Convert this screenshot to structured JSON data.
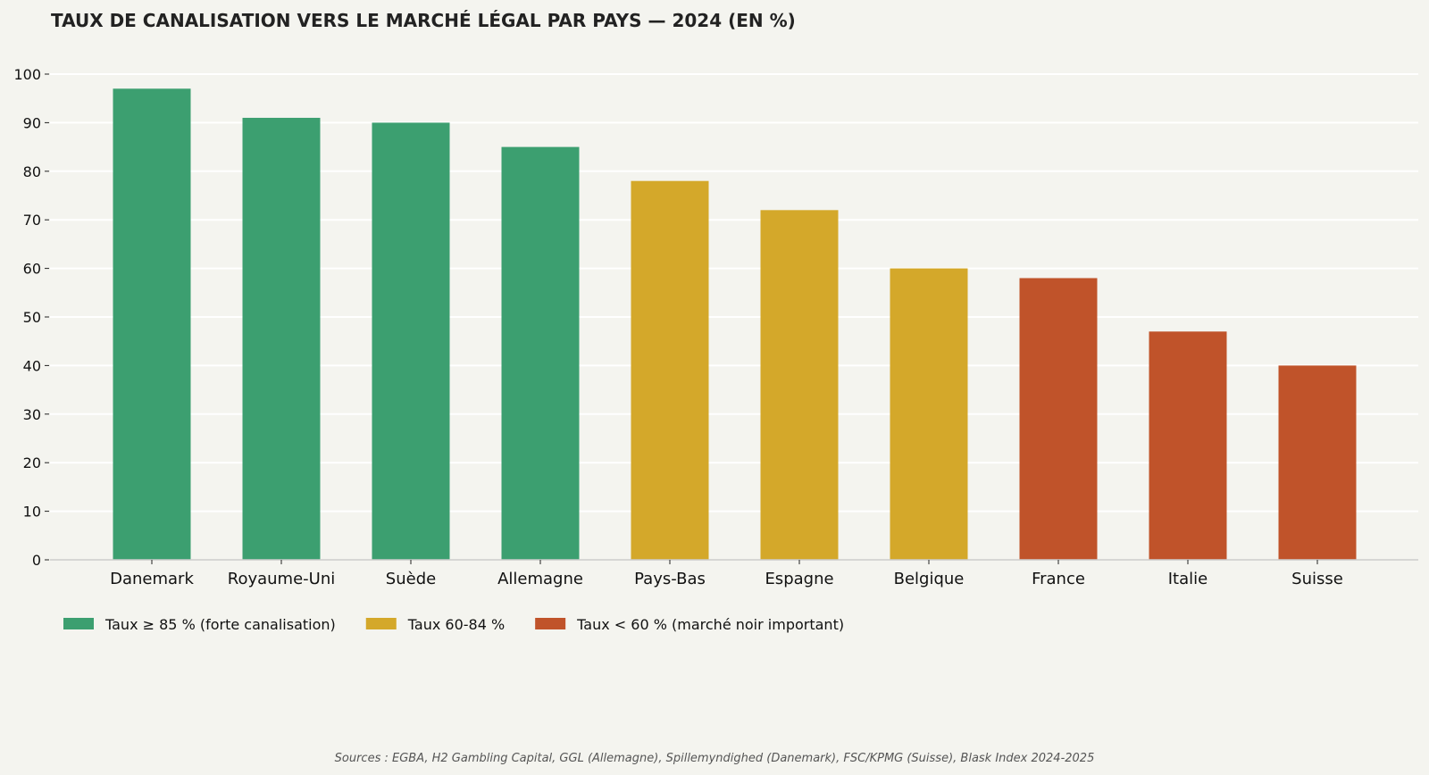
{
  "chart_data": {
    "type": "bar",
    "title": "TAUX DE CANALISATION VERS LE MARCHÉ LÉGAL PAR PAYS — 2024 (EN %)",
    "xlabel": "",
    "ylabel": "",
    "ylim": [
      0,
      100
    ],
    "yticks": [
      0,
      10,
      20,
      30,
      40,
      50,
      60,
      70,
      80,
      90,
      100
    ],
    "grid": true,
    "categories": [
      "Danemark",
      "Royaume-Uni",
      "Suède",
      "Allemagne",
      "Pays-Bas",
      "Espagne",
      "Belgique",
      "France",
      "Italie",
      "Suisse"
    ],
    "values": [
      97,
      91,
      90,
      85,
      78,
      72,
      60,
      58,
      47,
      40
    ],
    "bar_groups": [
      "high",
      "high",
      "high",
      "high",
      "mid",
      "mid",
      "mid",
      "low",
      "low",
      "low"
    ],
    "legend": {
      "placement": "bottom-left",
      "entries": [
        {
          "key": "high",
          "label": "Taux ≥ 85 % (forte canalisation)",
          "color": "#3c9f70"
        },
        {
          "key": "mid",
          "label": "Taux 60-84 %",
          "color": "#d4a82a"
        },
        {
          "key": "low",
          "label": "Taux < 60 % (marché noir important)",
          "color": "#c0532a"
        }
      ]
    },
    "source": "Sources : EGBA, H2 Gambling Capital, GGL (Allemagne), Spillemyndighed (Danemark), FSC/KPMG (Suisse), Blask Index 2024-2025"
  },
  "colors": {
    "background": "#f4f4ef",
    "grid": "#ffffff",
    "axis": "#cccccc"
  }
}
